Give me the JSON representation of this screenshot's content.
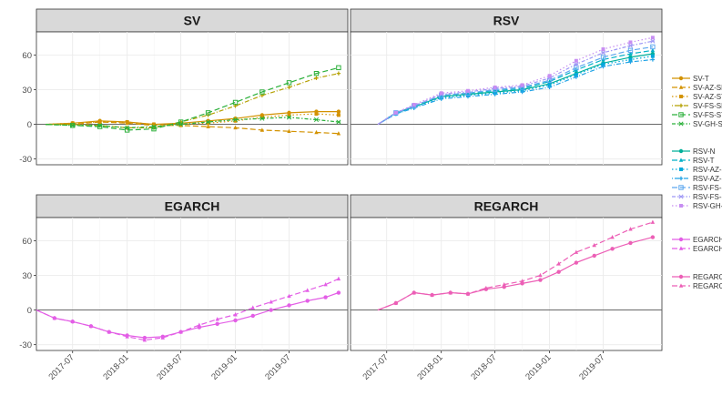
{
  "chart_data": {
    "type": "line",
    "xticks": [
      "2017-07",
      "2018-01",
      "2018-07",
      "2019-01",
      "2019-07"
    ],
    "yticks": [
      -30,
      0,
      30,
      60
    ],
    "ylim": [
      -35,
      80
    ],
    "xlim": [
      "2017-03-01",
      "2020-01-15"
    ],
    "grid": true,
    "legend_position": "right",
    "colors": {
      "panel_bg": "#ffffff",
      "strip_bg": "#d9d9d9",
      "grid": "#ebebeb",
      "zero_line": "#555555",
      "sv": "#d39200",
      "sv_gh": "#2bb03a",
      "rsv": "#00b1c7",
      "rsv_blue": "#5ea8ef",
      "rsv_gh": "#c78df2",
      "egarch": "#e35ee6",
      "regarch": "#ec5fb6"
    },
    "panels": [
      {
        "title": "SV",
        "series": [
          {
            "name": "SV-T",
            "color": "#d39200",
            "dash": "solid",
            "marker": "circle",
            "x": [
              "2017-04-01",
              "2017-07-01",
              "2017-10-01",
              "2018-01-01",
              "2018-04-01",
              "2018-07-01",
              "2018-10-01",
              "2019-01-01",
              "2019-04-01",
              "2019-07-01",
              "2019-10-01",
              "2019-12-15"
            ],
            "y": [
              0,
              1,
              3,
              2,
              0,
              1,
              3,
              5,
              8,
              10,
              11,
              11
            ]
          },
          {
            "name": "SV-AZ-SN",
            "color": "#d39200",
            "dash": "longdash",
            "marker": "triangle",
            "x": [
              "2017-04-01",
              "2017-07-01",
              "2017-10-01",
              "2018-01-01",
              "2018-04-01",
              "2018-07-01",
              "2018-10-01",
              "2019-01-01",
              "2019-04-01",
              "2019-07-01",
              "2019-10-01",
              "2019-12-15"
            ],
            "y": [
              0,
              0,
              2,
              1,
              -1,
              -1,
              -2,
              -3,
              -5,
              -6,
              -7,
              -8
            ]
          },
          {
            "name": "SV-AZ-ST",
            "color": "#d39200",
            "dash": "dotted",
            "marker": "square",
            "x": [
              "2017-04-01",
              "2017-07-01",
              "2017-10-01",
              "2018-01-01",
              "2018-04-01",
              "2018-07-01",
              "2018-10-01",
              "2019-01-01",
              "2019-04-01",
              "2019-07-01",
              "2019-10-01",
              "2019-12-15"
            ],
            "y": [
              0,
              1,
              2,
              2,
              0,
              0,
              1,
              3,
              6,
              8,
              9,
              8
            ]
          },
          {
            "name": "SV-FS-SN",
            "color": "#b5a000",
            "dash": "dotdash",
            "marker": "plus",
            "x": [
              "2017-04-01",
              "2017-07-01",
              "2017-10-01",
              "2018-01-01",
              "2018-04-01",
              "2018-07-01",
              "2018-10-01",
              "2019-01-01",
              "2019-04-01",
              "2019-07-01",
              "2019-10-01",
              "2019-12-15"
            ],
            "y": [
              0,
              0,
              -1,
              -3,
              -3,
              2,
              8,
              16,
              25,
              32,
              40,
              44
            ]
          },
          {
            "name": "SV-FS-ST",
            "color": "#2bb03a",
            "dash": "longdash",
            "marker": "box",
            "x": [
              "2017-04-01",
              "2017-07-01",
              "2017-10-01",
              "2018-01-01",
              "2018-04-01",
              "2018-07-01",
              "2018-10-01",
              "2019-01-01",
              "2019-04-01",
              "2019-07-01",
              "2019-10-01",
              "2019-12-15"
            ],
            "y": [
              0,
              -1,
              -2,
              -5,
              -4,
              2,
              10,
              19,
              28,
              36,
              44,
              49
            ]
          },
          {
            "name": "SV-GH-ST",
            "color": "#2bb03a",
            "dash": "twodash",
            "marker": "star",
            "x": [
              "2017-04-01",
              "2017-07-01",
              "2017-10-01",
              "2018-01-01",
              "2018-04-01",
              "2018-07-01",
              "2018-10-01",
              "2019-01-01",
              "2019-04-01",
              "2019-07-01",
              "2019-10-01",
              "2019-12-15"
            ],
            "y": [
              0,
              -1,
              -1,
              -3,
              -2,
              0,
              2,
              4,
              5,
              6,
              4,
              2
            ]
          }
        ]
      },
      {
        "title": "RSV",
        "series": [
          {
            "name": "RSV-N",
            "color": "#00b09a",
            "dash": "solid",
            "marker": "circle",
            "x": [
              "2017-06-01",
              "2017-08-01",
              "2017-10-01",
              "2018-01-01",
              "2018-04-01",
              "2018-07-01",
              "2018-10-01",
              "2019-01-01",
              "2019-04-01",
              "2019-07-01",
              "2019-10-01",
              "2019-12-15"
            ],
            "y": [
              0,
              10,
              15,
              24,
              26,
              28,
              30,
              35,
              44,
              53,
              58,
              61
            ]
          },
          {
            "name": "RSV-T",
            "color": "#00b1c7",
            "dash": "longdash",
            "marker": "triangle",
            "x": [
              "2017-06-01",
              "2017-08-01",
              "2017-10-01",
              "2018-01-01",
              "2018-04-01",
              "2018-07-01",
              "2018-10-01",
              "2019-01-01",
              "2019-04-01",
              "2019-07-01",
              "2019-10-01",
              "2019-12-15"
            ],
            "y": [
              0,
              10,
              16,
              25,
              27,
              29,
              31,
              37,
              47,
              56,
              61,
              64
            ]
          },
          {
            "name": "RSV-AZ-SN",
            "color": "#00a9d9",
            "dash": "dotted",
            "marker": "square",
            "x": [
              "2017-06-01",
              "2017-08-01",
              "2017-10-01",
              "2018-01-01",
              "2018-04-01",
              "2018-07-01",
              "2018-10-01",
              "2019-01-01",
              "2019-04-01",
              "2019-07-01",
              "2019-10-01",
              "2019-12-15"
            ],
            "y": [
              0,
              9,
              15,
              23,
              25,
              27,
              29,
              34,
              43,
              52,
              56,
              59
            ]
          },
          {
            "name": "RSV-AZ-ST",
            "color": "#21a3e6",
            "dash": "dotdash",
            "marker": "plus",
            "x": [
              "2017-06-01",
              "2017-08-01",
              "2017-10-01",
              "2018-01-01",
              "2018-04-01",
              "2018-07-01",
              "2018-10-01",
              "2019-01-01",
              "2019-04-01",
              "2019-07-01",
              "2019-10-01",
              "2019-12-15"
            ],
            "y": [
              0,
              9,
              14,
              22,
              24,
              26,
              28,
              32,
              41,
              50,
              54,
              56
            ]
          },
          {
            "name": "RSV-FS-SN",
            "color": "#5ea8ef",
            "dash": "longdash",
            "marker": "box",
            "x": [
              "2017-06-01",
              "2017-08-01",
              "2017-10-01",
              "2018-01-01",
              "2018-04-01",
              "2018-07-01",
              "2018-10-01",
              "2019-01-01",
              "2019-04-01",
              "2019-07-01",
              "2019-10-01",
              "2019-12-15"
            ],
            "y": [
              0,
              10,
              16,
              25,
              27,
              30,
              32,
              38,
              49,
              58,
              64,
              67
            ]
          },
          {
            "name": "RSV-FS-ST",
            "color": "#9e97f5",
            "dash": "twodash",
            "marker": "star",
            "x": [
              "2017-06-01",
              "2017-08-01",
              "2017-10-01",
              "2018-01-01",
              "2018-04-01",
              "2018-07-01",
              "2018-10-01",
              "2019-01-01",
              "2019-04-01",
              "2019-07-01",
              "2019-10-01",
              "2019-12-15"
            ],
            "y": [
              0,
              10,
              16,
              26,
              28,
              31,
              33,
              40,
              52,
              62,
              68,
              72
            ]
          },
          {
            "name": "RSV-GH-ST",
            "color": "#c78df2",
            "dash": "dotted",
            "marker": "square",
            "x": [
              "2017-06-01",
              "2017-08-01",
              "2017-10-01",
              "2018-01-01",
              "2018-04-01",
              "2018-07-01",
              "2018-10-01",
              "2019-01-01",
              "2019-04-01",
              "2019-07-01",
              "2019-10-01",
              "2019-12-15"
            ],
            "y": [
              0,
              10,
              17,
              27,
              29,
              32,
              34,
              42,
              55,
              65,
              71,
              75
            ]
          }
        ]
      },
      {
        "title": "EGARCH",
        "series": [
          {
            "name": "EGARCH-N",
            "color": "#e35ee6",
            "dash": "solid",
            "marker": "circle",
            "x": [
              "2017-03-01",
              "2017-05-01",
              "2017-07-01",
              "2017-09-01",
              "2017-11-01",
              "2018-01-01",
              "2018-03-01",
              "2018-05-01",
              "2018-07-01",
              "2018-09-01",
              "2018-11-01",
              "2019-01-01",
              "2019-03-01",
              "2019-05-01",
              "2019-07-01",
              "2019-09-01",
              "2019-11-01",
              "2019-12-15"
            ],
            "y": [
              0,
              -7,
              -10,
              -14,
              -19,
              -22,
              -24,
              -23,
              -19,
              -15,
              -12,
              -9,
              -5,
              0,
              4,
              8,
              11,
              15
            ]
          },
          {
            "name": "EGARCH-T",
            "color": "#e35ee6",
            "dash": "longdash",
            "marker": "triangle",
            "x": [
              "2017-03-01",
              "2017-05-01",
              "2017-07-01",
              "2017-09-01",
              "2017-11-01",
              "2018-01-01",
              "2018-03-01",
              "2018-05-01",
              "2018-07-01",
              "2018-09-01",
              "2018-11-01",
              "2019-01-01",
              "2019-03-01",
              "2019-05-01",
              "2019-07-01",
              "2019-09-01",
              "2019-11-01",
              "2019-12-15"
            ],
            "y": [
              0,
              -7,
              -10,
              -14,
              -19,
              -23,
              -26,
              -24,
              -19,
              -13,
              -8,
              -4,
              2,
              7,
              12,
              17,
              22,
              27
            ]
          }
        ]
      },
      {
        "title": "REGARCH",
        "series": [
          {
            "name": "REGARCH-N",
            "color": "#ec5fb6",
            "dash": "solid",
            "marker": "circle",
            "x": [
              "2017-06-01",
              "2017-08-01",
              "2017-10-01",
              "2017-12-01",
              "2018-02-01",
              "2018-04-01",
              "2018-06-01",
              "2018-08-01",
              "2018-10-01",
              "2018-12-01",
              "2019-02-01",
              "2019-04-01",
              "2019-06-01",
              "2019-08-01",
              "2019-10-01",
              "2019-12-15"
            ],
            "y": [
              0,
              6,
              15,
              13,
              15,
              14,
              18,
              20,
              23,
              26,
              33,
              41,
              47,
              53,
              58,
              63
            ]
          },
          {
            "name": "REGARCH-T",
            "color": "#ec5fb6",
            "dash": "longdash",
            "marker": "triangle",
            "x": [
              "2017-06-01",
              "2017-08-01",
              "2017-10-01",
              "2017-12-01",
              "2018-02-01",
              "2018-04-01",
              "2018-06-01",
              "2018-08-01",
              "2018-10-01",
              "2018-12-01",
              "2019-02-01",
              "2019-04-01",
              "2019-06-01",
              "2019-08-01",
              "2019-10-01",
              "2019-12-15"
            ],
            "y": [
              0,
              6,
              15,
              13,
              15,
              14,
              19,
              22,
              25,
              30,
              40,
              50,
              56,
              63,
              70,
              76
            ]
          }
        ]
      }
    ]
  }
}
